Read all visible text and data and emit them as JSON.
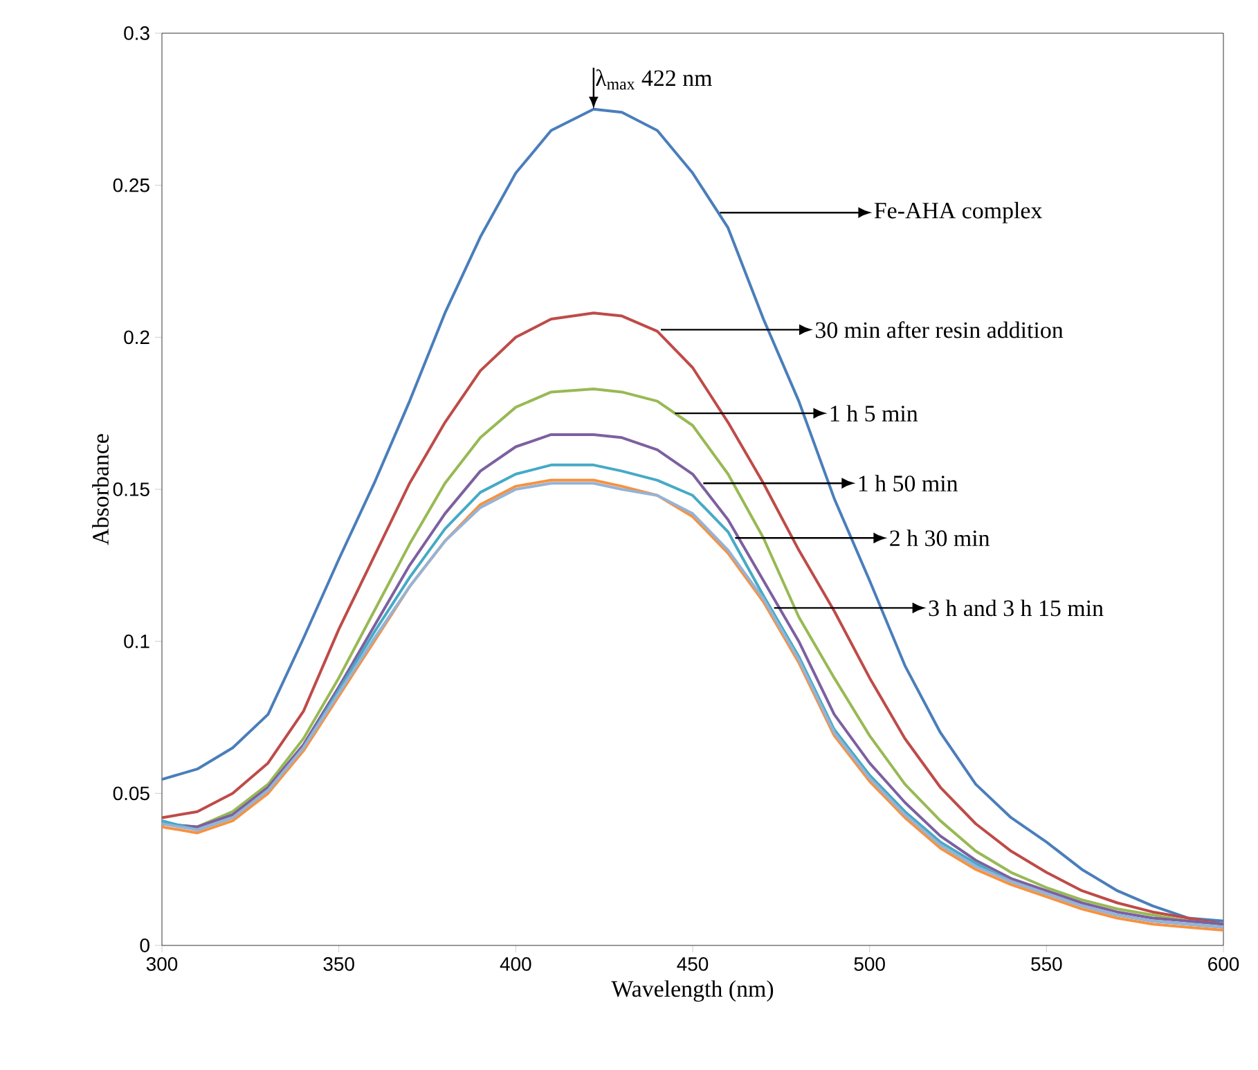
{
  "chart_data": {
    "type": "line",
    "xlabel": "Wavelength (nm)",
    "ylabel": "Absorbance",
    "xlim": [
      300,
      600
    ],
    "ylim": [
      0,
      0.3
    ],
    "xticks": [
      300,
      350,
      400,
      450,
      500,
      550,
      600
    ],
    "yticks": [
      0,
      0.05,
      0.1,
      0.15,
      0.2,
      0.25,
      0.3
    ],
    "marker": "none",
    "x": [
      300,
      310,
      320,
      330,
      340,
      350,
      360,
      370,
      380,
      390,
      400,
      410,
      422,
      430,
      440,
      450,
      460,
      470,
      480,
      490,
      500,
      510,
      520,
      530,
      540,
      550,
      560,
      570,
      580,
      590,
      600
    ],
    "series": [
      {
        "color": "#4a7ebb",
        "values": [
          0.0546,
          0.058,
          0.065,
          0.076,
          0.101,
          0.127,
          0.152,
          0.179,
          0.208,
          0.233,
          0.254,
          0.268,
          0.275,
          0.274,
          0.268,
          0.254,
          0.236,
          0.206,
          0.179,
          0.147,
          0.12,
          0.092,
          0.07,
          0.053,
          0.042,
          0.034,
          0.025,
          0.018,
          0.013,
          0.009,
          0.008
        ]
      },
      {
        "color": "#be4b48",
        "values": [
          0.042,
          0.044,
          0.05,
          0.06,
          0.077,
          0.104,
          0.128,
          0.152,
          0.172,
          0.189,
          0.2,
          0.206,
          0.208,
          0.207,
          0.202,
          0.19,
          0.172,
          0.152,
          0.13,
          0.11,
          0.088,
          0.068,
          0.052,
          0.04,
          0.031,
          0.024,
          0.018,
          0.014,
          0.011,
          0.009,
          0.007
        ]
      },
      {
        "color": "#98b954",
        "values": [
          0.04,
          0.039,
          0.044,
          0.053,
          0.068,
          0.088,
          0.11,
          0.132,
          0.152,
          0.167,
          0.177,
          0.182,
          0.183,
          0.182,
          0.179,
          0.171,
          0.155,
          0.134,
          0.108,
          0.088,
          0.069,
          0.053,
          0.041,
          0.031,
          0.024,
          0.019,
          0.015,
          0.012,
          0.01,
          0.008,
          0.007
        ]
      },
      {
        "color": "#7d60a0",
        "values": [
          0.04,
          0.039,
          0.043,
          0.052,
          0.066,
          0.085,
          0.105,
          0.125,
          0.142,
          0.156,
          0.164,
          0.168,
          0.168,
          0.167,
          0.163,
          0.155,
          0.14,
          0.12,
          0.1,
          0.076,
          0.06,
          0.047,
          0.036,
          0.028,
          0.022,
          0.018,
          0.014,
          0.011,
          0.009,
          0.008,
          0.007
        ]
      },
      {
        "color": "#46aac5",
        "values": [
          0.041,
          0.038,
          0.042,
          0.051,
          0.065,
          0.084,
          0.103,
          0.121,
          0.137,
          0.149,
          0.155,
          0.158,
          0.158,
          0.156,
          0.153,
          0.148,
          0.136,
          0.115,
          0.095,
          0.071,
          0.056,
          0.044,
          0.034,
          0.027,
          0.021,
          0.017,
          0.013,
          0.01,
          0.008,
          0.007,
          0.006
        ]
      },
      {
        "color": "#f69240",
        "values": [
          0.039,
          0.037,
          0.041,
          0.05,
          0.064,
          0.082,
          0.1,
          0.118,
          0.133,
          0.145,
          0.151,
          0.153,
          0.153,
          0.151,
          0.148,
          0.141,
          0.129,
          0.113,
          0.093,
          0.069,
          0.054,
          0.042,
          0.032,
          0.025,
          0.02,
          0.016,
          0.012,
          0.009,
          0.007,
          0.006,
          0.005
        ]
      },
      {
        "color": "#95b3d7",
        "values": [
          0.04,
          0.038,
          0.042,
          0.051,
          0.065,
          0.083,
          0.101,
          0.118,
          0.133,
          0.144,
          0.15,
          0.152,
          0.152,
          0.15,
          0.148,
          0.142,
          0.13,
          0.114,
          0.094,
          0.07,
          0.055,
          0.043,
          0.033,
          0.026,
          0.021,
          0.017,
          0.013,
          0.01,
          0.008,
          0.007,
          0.006
        ]
      }
    ],
    "annotations": [
      {
        "text": "λ$_{max}$ 422 nm",
        "x": 422,
        "y": 0.275
      },
      {
        "text": "Fe-AHA complex",
        "x": 457.7,
        "y": 0.241
      },
      {
        "text": "30 min after resin addition",
        "x": 441,
        "y": 0.2025
      },
      {
        "text": "1 h 5 min",
        "x": 445,
        "y": 0.175
      },
      {
        "text": "1 h 50 min",
        "x": 453,
        "y": 0.152
      },
      {
        "text": "2 h 30 min",
        "x": 462,
        "y": 0.134
      },
      {
        "text": "3 h and 3 h 15 min",
        "x": 473,
        "y": 0.111
      }
    ]
  }
}
